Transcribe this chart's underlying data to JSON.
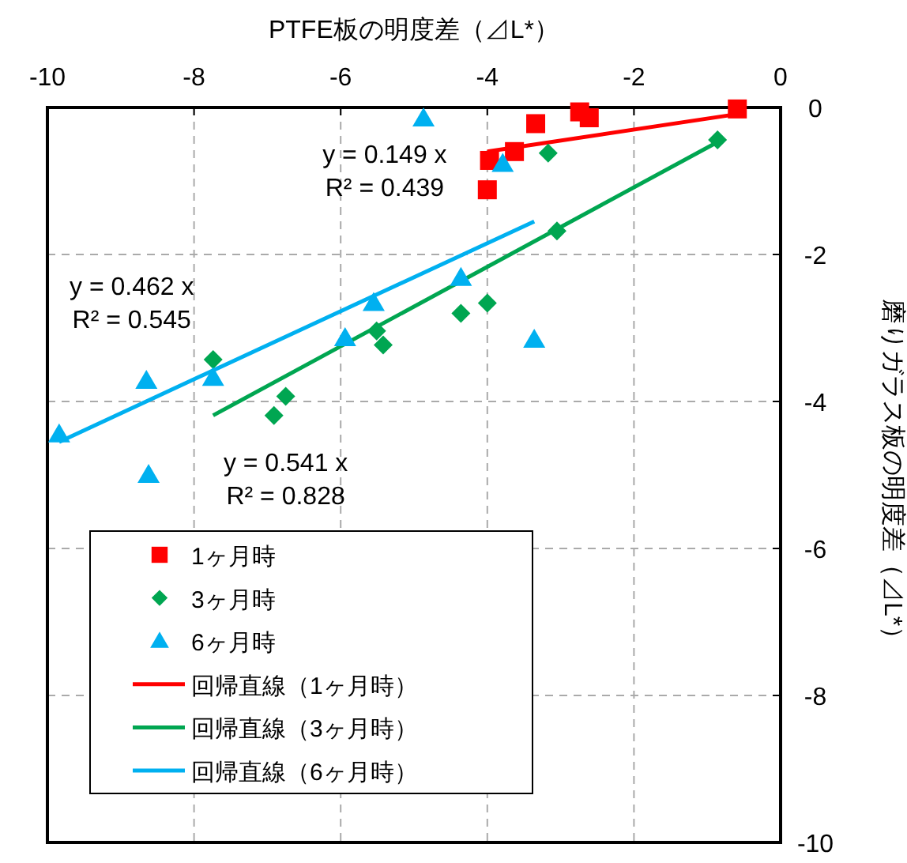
{
  "chart_data": {
    "type": "scatter",
    "xlabel": "PTFE板の明度差（⊿L*）",
    "ylabel": "磨りガラス板の明度差（⊿L*）",
    "xlim": [
      -10,
      0
    ],
    "xticks": [
      -10,
      -8,
      -6,
      -4,
      -2,
      0
    ],
    "ylim": [
      -10,
      0
    ],
    "yticks": [
      -10,
      -8,
      -6,
      -4,
      -2,
      0
    ],
    "grid": true,
    "legend": "bottom left",
    "annotations": [
      "y = 0.149 x\nR² = 0.439",
      "y = 0.462 x\nR² = 0.545",
      "y = 0.541 x\nR² = 0.828"
    ],
    "series": [
      {
        "name": "1ヶ月時",
        "marker": "square",
        "color": "#ff0000",
        "x": [
          -0.59,
          -2.74,
          -2.61,
          -3.34,
          -3.63,
          -3.97,
          -4.0
        ],
        "values": [
          -0.02,
          -0.06,
          -0.14,
          -0.22,
          -0.6,
          -0.72,
          -1.12
        ]
      },
      {
        "name": "3ヶ月時",
        "marker": "diamond",
        "color": "#00a651",
        "x": [
          -0.86,
          -3.17,
          -3.05,
          -4.0,
          -4.36,
          -7.74,
          -5.51,
          -5.42,
          -6.75,
          -6.91
        ],
        "values": [
          -0.44,
          -0.62,
          -1.68,
          -2.66,
          -2.8,
          -3.43,
          -3.04,
          -3.23,
          -3.93,
          -4.19
        ]
      },
      {
        "name": "6ヶ月時",
        "marker": "triangle",
        "color": "#00b0f0",
        "x": [
          -4.87,
          -3.79,
          -4.36,
          -3.36,
          -5.55,
          -5.94,
          -8.65,
          -7.74,
          -9.84,
          -8.62
        ],
        "values": [
          -0.15,
          -0.77,
          -2.32,
          -3.16,
          -2.66,
          -3.14,
          -3.72,
          -3.68,
          -4.45,
          -5.0
        ]
      },
      {
        "name": "回帰直線（1ヶ月時）",
        "type": "line",
        "color": "#ff0000",
        "x": [
          -4.0,
          -0.59
        ],
        "values": [
          -0.6,
          -0.09
        ]
      },
      {
        "name": "回帰直線（3ヶ月時）",
        "type": "line",
        "color": "#00a651",
        "x": [
          -7.74,
          -0.86
        ],
        "values": [
          -4.19,
          -0.47
        ]
      },
      {
        "name": "回帰直線（6ヶ月時）",
        "type": "line",
        "color": "#00b0f0",
        "x": [
          -9.84,
          -3.36
        ],
        "values": [
          -4.55,
          -1.55
        ]
      }
    ]
  }
}
